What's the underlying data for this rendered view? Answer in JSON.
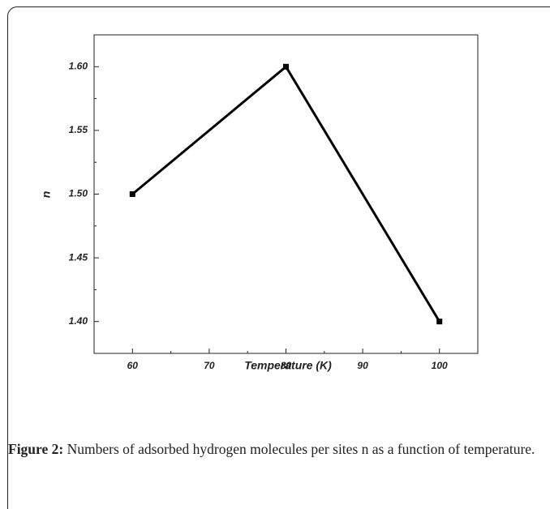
{
  "chart_data": {
    "type": "line",
    "x_label": "Temperature (K)",
    "y_label": "n",
    "x": [
      60,
      80,
      100
    ],
    "series": [
      {
        "name": "n",
        "color": "#000000",
        "values": [
          1.5,
          1.6,
          1.4
        ]
      }
    ],
    "xlim": [
      55,
      105
    ],
    "xticks": [
      60,
      70,
      80,
      90,
      100
    ],
    "ylim": [
      1.375,
      1.625
    ],
    "yticks": [
      {
        "value": 1.4,
        "label": "1.40"
      },
      1.45,
      {
        "value": 1.5,
        "label": "1.50"
      },
      1.55,
      {
        "value": 1.6,
        "label": "1.60"
      }
    ],
    "grid": false
  },
  "caption": {
    "label": "Figure 2:",
    "text": "Numbers of adsorbed hydrogen molecules per sites n as a function of temperature."
  }
}
